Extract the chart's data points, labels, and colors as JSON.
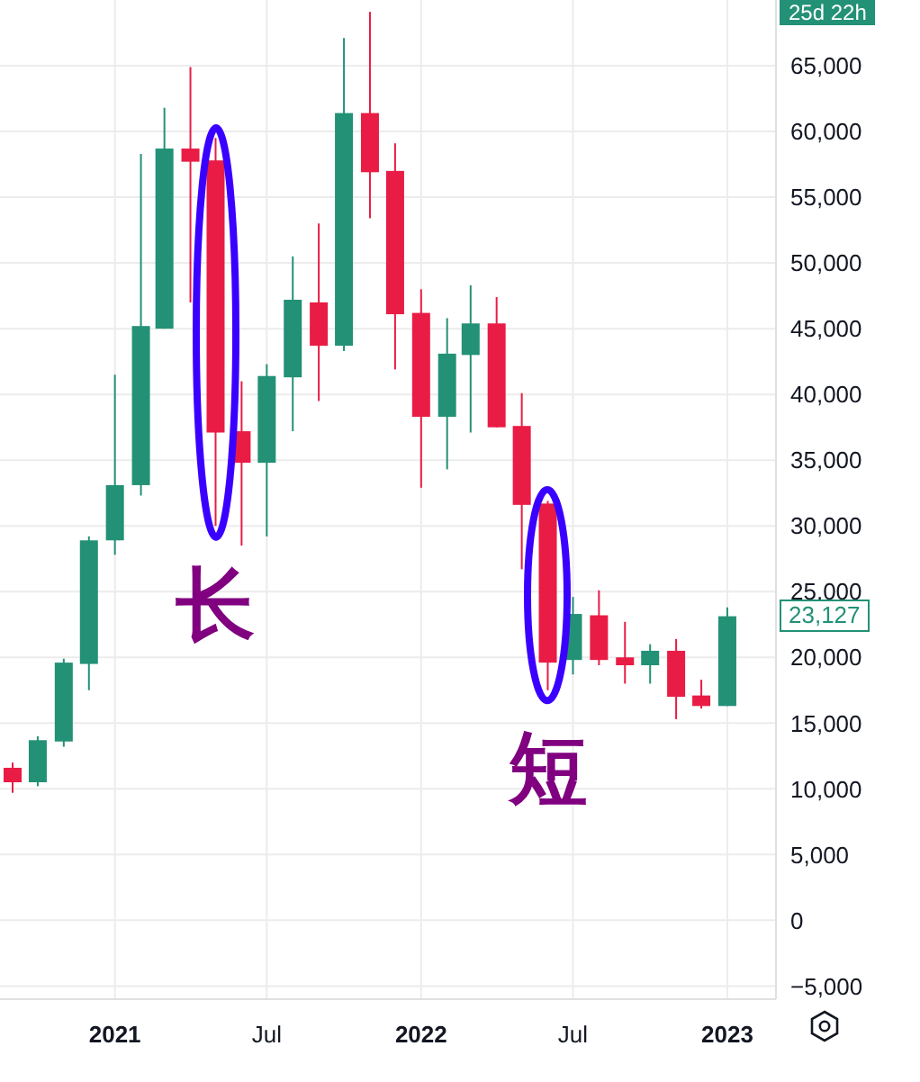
{
  "chart_data": {
    "type": "candlestick",
    "x": [
      "2020-09",
      "2020-10",
      "2020-11",
      "2020-12",
      "2021-01",
      "2021-02",
      "2021-03",
      "2021-04",
      "2021-05",
      "2021-06",
      "2021-07",
      "2021-08",
      "2021-09",
      "2021-10",
      "2021-11",
      "2021-12",
      "2022-01",
      "2022-02",
      "2022-03",
      "2022-04",
      "2022-05",
      "2022-06",
      "2022-07",
      "2022-08",
      "2022-09",
      "2022-10",
      "2022-11",
      "2022-12",
      "2023-01"
    ],
    "ohlc": [
      [
        11600,
        12000,
        9700,
        10500
      ],
      [
        10500,
        14000,
        10200,
        13700
      ],
      [
        13600,
        19900,
        13200,
        19600
      ],
      [
        19500,
        29200,
        17500,
        28900
      ],
      [
        28900,
        41500,
        27800,
        33100
      ],
      [
        33100,
        58300,
        32300,
        45200
      ],
      [
        45000,
        61800,
        45000,
        58700
      ],
      [
        58700,
        64900,
        47000,
        57700
      ],
      [
        57800,
        59500,
        30000,
        37100
      ],
      [
        37200,
        41000,
        28500,
        34800
      ],
      [
        34800,
        42300,
        29200,
        41400
      ],
      [
        41300,
        50500,
        37200,
        47200
      ],
      [
        47000,
        53000,
        39500,
        43700
      ],
      [
        43700,
        67100,
        43300,
        61400
      ],
      [
        61400,
        69100,
        53400,
        56900
      ],
      [
        57000,
        59100,
        41900,
        46100
      ],
      [
        46200,
        48000,
        32900,
        38300
      ],
      [
        38300,
        45800,
        34300,
        43100
      ],
      [
        43000,
        48300,
        37100,
        45400
      ],
      [
        45400,
        47400,
        37500,
        37500
      ],
      [
        37600,
        40100,
        26700,
        31600
      ],
      [
        31700,
        31900,
        17500,
        19600
      ],
      [
        19800,
        24600,
        18700,
        23300
      ],
      [
        23200,
        25100,
        19400,
        19800
      ],
      [
        20000,
        22700,
        18000,
        19400
      ],
      [
        19400,
        21000,
        18000,
        20500
      ],
      [
        20500,
        21400,
        15300,
        17000
      ],
      [
        17100,
        18300,
        16100,
        16300
      ],
      [
        16300,
        23800,
        16300,
        23127
      ]
    ],
    "colors": [
      "#e91c45",
      "#239176",
      "#239176",
      "#239176",
      "#239176",
      "#239176",
      "#239176",
      "#e91c45",
      "#e91c45",
      "#e91c45",
      "#239176",
      "#239176",
      "#e91c45",
      "#239176",
      "#e91c45",
      "#e91c45",
      "#e91c45",
      "#239176",
      "#239176",
      "#e91c45",
      "#e91c45",
      "#e91c45",
      "#239176",
      "#e91c45",
      "#e91c45",
      "#239176",
      "#e91c45",
      "#e91c45",
      "#239176"
    ],
    "xlim": [
      "2020-08-17",
      "2023-02-28"
    ],
    "xticks": [
      {
        "value": "2021-01",
        "label": "2021"
      },
      {
        "value": "2021-07",
        "label": "Jul"
      },
      {
        "value": "2022-01",
        "label": "2022"
      },
      {
        "value": "2022-07",
        "label": "Jul"
      },
      {
        "value": "2023-01",
        "label": "2023"
      }
    ],
    "ylim": [
      -6000,
      70000
    ],
    "yticks": [
      {
        "value": -5000,
        "label": "−5,000"
      },
      {
        "value": 0,
        "label": "0"
      },
      {
        "value": 5000,
        "label": "5,000"
      },
      {
        "value": 10000,
        "label": "10,000"
      },
      {
        "value": 15000,
        "label": "15,000"
      },
      {
        "value": 20000,
        "label": "20,000"
      },
      {
        "value": 25000,
        "label": "25,000"
      },
      {
        "value": 30000,
        "label": "30,000"
      },
      {
        "value": 35000,
        "label": "35,000"
      },
      {
        "value": 40000,
        "label": "40,000"
      },
      {
        "value": 45000,
        "label": "45,000"
      },
      {
        "value": 50000,
        "label": "50,000"
      },
      {
        "value": 55000,
        "label": "55,000"
      },
      {
        "value": 60000,
        "label": "60,000"
      },
      {
        "value": 65000,
        "label": "65,000"
      }
    ],
    "grid": true,
    "annotations": [
      "长",
      "短",
      "25d 22h",
      "23,127"
    ]
  }
}
